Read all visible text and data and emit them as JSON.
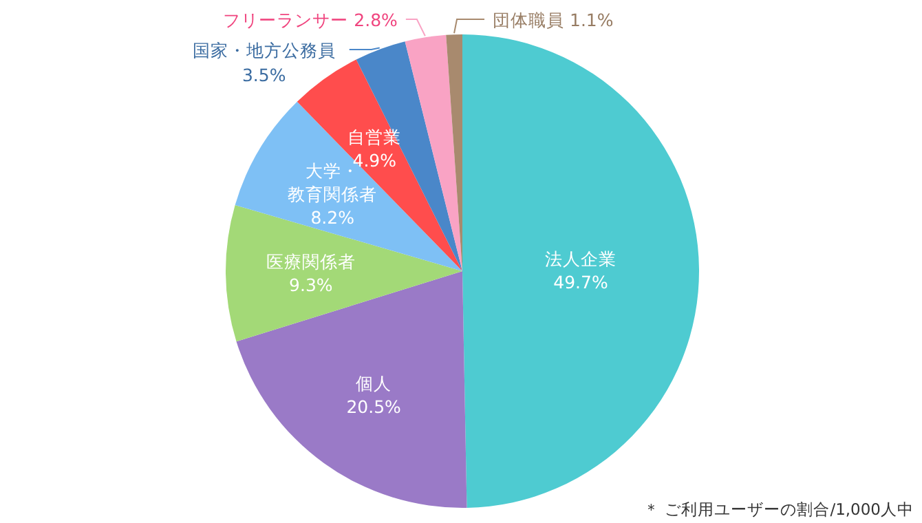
{
  "chart_data": {
    "type": "pie",
    "categories": [
      "法人企業",
      "個人",
      "医療関係者",
      "大学・教育関係者",
      "自営業",
      "国家・地方公務員",
      "フリーランサー",
      "団体職員"
    ],
    "values": [
      49.7,
      20.5,
      9.3,
      8.2,
      4.9,
      3.5,
      2.8,
      1.1
    ],
    "colors": [
      "#4ecbd1",
      "#9a7ac7",
      "#a3d977",
      "#7ec0f5",
      "#ff4d4d",
      "#4a87c9",
      "#f9a3c4",
      "#a88a6e"
    ],
    "value_labels": [
      "49.7%",
      "20.5%",
      "9.3%",
      "8.2%",
      "4.9%",
      "3.5%",
      "2.8%",
      "1.1%"
    ],
    "legend": false,
    "annotations": [
      "＊ ご利用ユーザーの割合/1,000人中"
    ]
  }
}
